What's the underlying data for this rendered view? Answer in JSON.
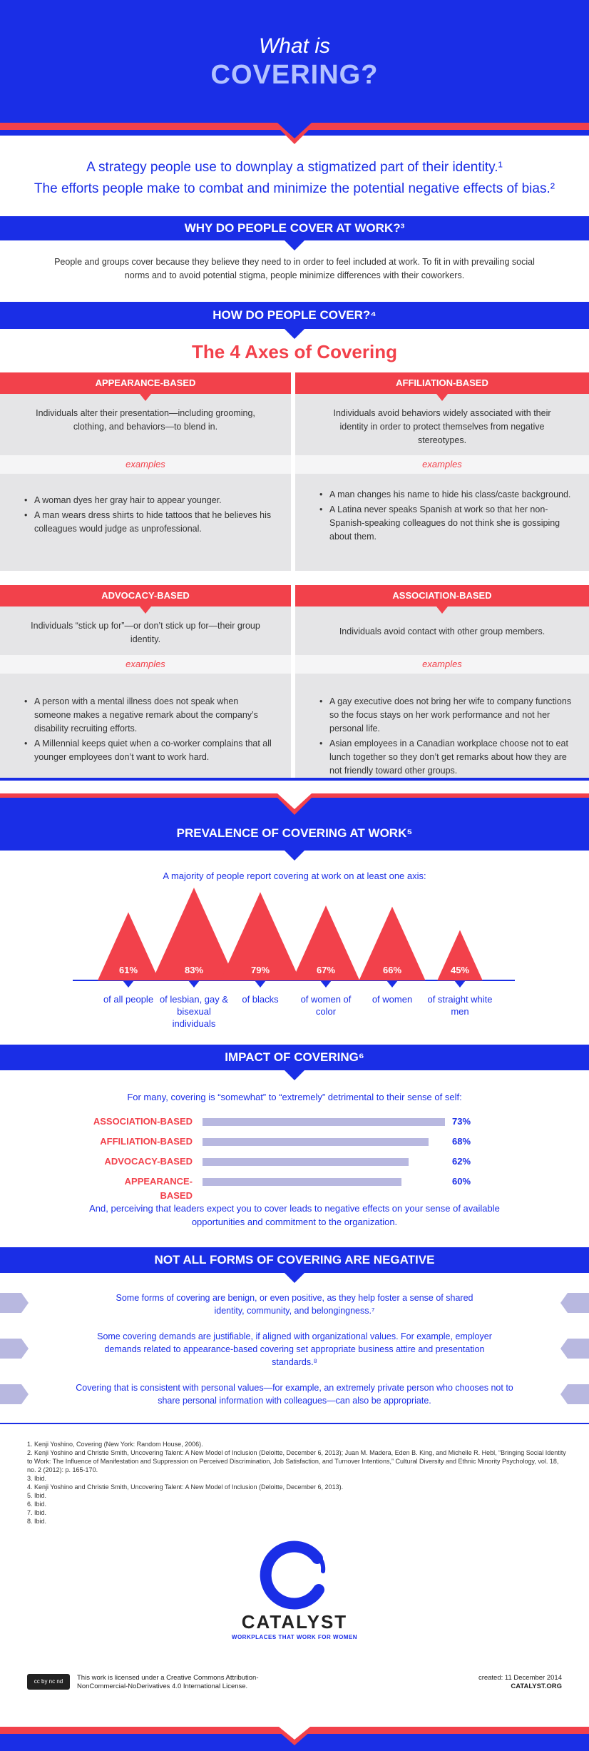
{
  "hero": {
    "line1": "What is",
    "line2": "COVERING?"
  },
  "definitions": {
    "def1": "A strategy people use to downplay a stigmatized part of their identity.¹",
    "def2": "The efforts people make to combat and minimize the potential negative effects of bias.²"
  },
  "why": {
    "heading": "WHY DO PEOPLE COVER AT WORK?³",
    "text": "People and groups cover because they believe they need to in order to feel included at work. To fit in with prevailing social norms and to avoid potential stigma, people minimize differences with their coworkers."
  },
  "how": {
    "heading": "HOW DO PEOPLE COVER?⁴",
    "subtitle": "The 4 Axes of Covering"
  },
  "axes": [
    {
      "title": "APPEARANCE-BASED",
      "desc": "Individuals alter their presentation—including grooming, clothing, and behaviors—to blend in.",
      "examples_label": "examples",
      "examples": [
        "A woman dyes her gray hair to appear younger.",
        "A man wears dress shirts to hide tattoos that he believes his colleagues would judge as unprofessional."
      ]
    },
    {
      "title": "AFFILIATION-BASED",
      "desc": "Individuals avoid behaviors widely associated with their identity in order to protect themselves from negative stereotypes.",
      "examples_label": "examples",
      "examples": [
        "A man changes his name to hide his class/caste background.",
        "A Latina never speaks Spanish at work so that her non-Spanish-speaking colleagues do not think she is gossiping about them."
      ]
    },
    {
      "title": "ADVOCACY-BASED",
      "desc": "Individuals “stick up for”—or don’t stick up for—their group identity.",
      "examples_label": "examples",
      "examples": [
        "A person with a mental illness does not speak when someone makes a negative remark about the company’s disability recruiting efforts.",
        "A Millennial keeps quiet when a co-worker complains that all younger employees don’t want to work hard."
      ]
    },
    {
      "title": "ASSOCIATION-BASED",
      "desc": "Individuals avoid contact with other group members.",
      "examples_label": "examples",
      "examples": [
        "A gay executive does not bring her wife to company functions so the focus stays on her work performance and not her personal life.",
        "Asian employees in a Canadian workplace choose not to eat lunch together so they don’t get remarks about how they are not friendly toward other groups."
      ]
    }
  ],
  "prevalence": {
    "heading": "PREVALENCE OF COVERING AT WORK⁵",
    "intro": "A majority of people report covering at work on at least one axis:",
    "items": [
      {
        "value": "61%",
        "pct": 61,
        "label": "of all people"
      },
      {
        "value": "83%",
        "pct": 83,
        "label": "of lesbian, gay & bisexual individuals"
      },
      {
        "value": "79%",
        "pct": 79,
        "label": "of blacks"
      },
      {
        "value": "67%",
        "pct": 67,
        "label": "of women of color"
      },
      {
        "value": "66%",
        "pct": 66,
        "label": "of women"
      },
      {
        "value": "45%",
        "pct": 45,
        "label": "of straight white men"
      }
    ]
  },
  "impact": {
    "heading": "IMPACT OF COVERING⁶",
    "intro": "For many, covering is “somewhat” to “extremely” detrimental to their sense of self:",
    "rows": [
      {
        "label": "ASSOCIATION-BASED",
        "value": "73%",
        "pct": 73
      },
      {
        "label": "AFFILIATION-BASED",
        "value": "68%",
        "pct": 68
      },
      {
        "label": "ADVOCACY-BASED",
        "value": "62%",
        "pct": 62
      },
      {
        "label": "APPEARANCE-BASED",
        "value": "60%",
        "pct": 60
      }
    ],
    "outro": "And, perceiving that leaders expect you to cover leads to negative effects on your sense of available opportunities and commitment to the organization."
  },
  "negative": {
    "heading": "NOT ALL FORMS OF COVERING ARE NEGATIVE",
    "p1": "Some forms of covering are benign, or even positive, as they help foster a sense of shared identity, community, and belongingness.⁷",
    "p2": "Some covering demands are justifiable, if aligned with organizational values. For example, employer demands related to appearance-based covering set appropriate business attire and presentation standards.⁸",
    "p3": "Covering that is consistent with personal values—for example, an extremely private person who chooses not to share personal information with colleagues—can also be appropriate."
  },
  "footnotes": [
    "1. Kenji Yoshino, Covering (New York: Random House, 2006).",
    "2. Kenji Yoshino and Christie Smith, Uncovering Talent: A New Model of Inclusion (Deloitte, December 6, 2013); Juan M. Madera, Eden B. King, and Michelle R. Hebl, “Bringing Social Identity to Work: The Influence of Manifestation and Suppression on Perceived Discrimination, Job Satisfaction, and Turnover Intentions,” Cultural Diversity and Ethnic Minority Psychology, vol. 18, no. 2 (2012): p. 165-170.",
    "3. Ibid.",
    "4. Kenji Yoshino and Christie Smith, Uncovering Talent: A New Model of Inclusion (Deloitte, December 6, 2013).",
    "5. Ibid.",
    "6. Ibid.",
    "7. Ibid.",
    "8. Ibid."
  ],
  "brand": {
    "name": "CATALYST",
    "tagline": "WORKPLACES THAT WORK FOR WOMEN"
  },
  "license": {
    "badge": "cc by nc nd",
    "text": "This work is licensed under a Creative Commons Attribution-NonCommercial-NoDerivatives 4.0 International License.",
    "created": "created: 11 December 2014",
    "site": "CATALYST.ORG"
  },
  "colors": {
    "blue": "#1a2ee6",
    "red": "#f2414b",
    "lavender": "#b8b8e0"
  }
}
